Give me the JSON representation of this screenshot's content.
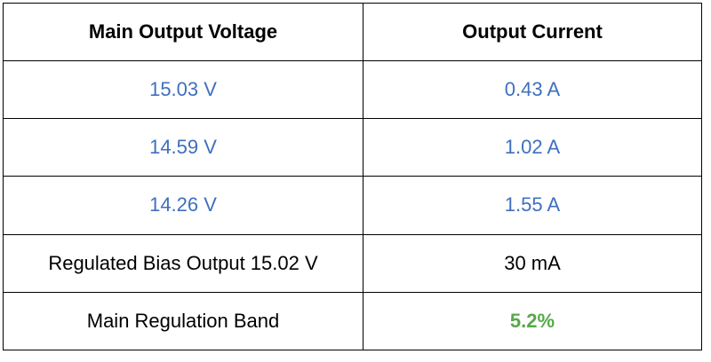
{
  "table": {
    "header": [
      "Main Output Voltage",
      "Output Current"
    ],
    "rows": [
      [
        "15.03 V",
        "0.43 A"
      ],
      [
        "14.59 V",
        "1.02 A"
      ],
      [
        "14.26 V",
        "1.55 A"
      ],
      [
        "Regulated Bias Output 15.02 V",
        "30 mA"
      ],
      [
        "Main Regulation Band",
        "5.2%"
      ]
    ]
  }
}
